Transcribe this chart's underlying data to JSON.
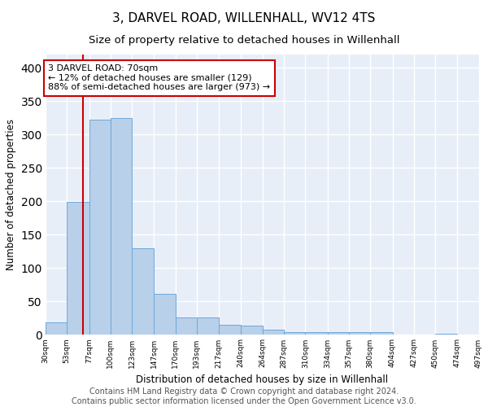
{
  "title": "3, DARVEL ROAD, WILLENHALL, WV12 4TS",
  "subtitle": "Size of property relative to detached houses in Willenhall",
  "xlabel": "Distribution of detached houses by size in Willenhall",
  "ylabel": "Number of detached properties",
  "bar_color": "#b8d0ea",
  "bar_edge_color": "#6ea8d8",
  "background_color": "#e8eef8",
  "grid_color": "#ffffff",
  "annotation_box_color": "#cc0000",
  "annotation_text": "3 DARVEL ROAD: 70sqm\n← 12% of detached houses are smaller (129)\n88% of semi-detached houses are larger (973) →",
  "property_line_x": 70,
  "bins": [
    30,
    53,
    77,
    100,
    123,
    147,
    170,
    193,
    217,
    240,
    264,
    287,
    310,
    334,
    357,
    380,
    404,
    427,
    450,
    474,
    497
  ],
  "counts": [
    18,
    199,
    322,
    325,
    130,
    61,
    26,
    26,
    15,
    14,
    8,
    4,
    4,
    4,
    4,
    4,
    0,
    0,
    1,
    0,
    5
  ],
  "ylim": [
    0,
    420
  ],
  "yticks": [
    0,
    50,
    100,
    150,
    200,
    250,
    300,
    350,
    400
  ],
  "footer_text": "Contains HM Land Registry data © Crown copyright and database right 2024.\nContains public sector information licensed under the Open Government Licence v3.0.",
  "title_fontsize": 11,
  "subtitle_fontsize": 9.5,
  "annotation_fontsize": 8,
  "footer_fontsize": 7
}
